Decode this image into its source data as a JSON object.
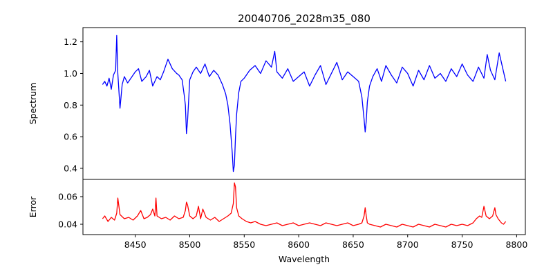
{
  "chart_data": {
    "type": "line",
    "title": "20040706_2028m35_080",
    "xlabel": "Wavelength",
    "grid": false,
    "xlim": [
      8402,
      8808
    ],
    "xticks": [
      8450,
      8500,
      8550,
      8600,
      8650,
      8700,
      8750,
      8800
    ],
    "panels": [
      {
        "name": "spectrum-panel",
        "ylabel": "Spectrum",
        "ylim": [
          0.33,
          1.29
        ],
        "yticks": [
          0.4,
          0.6,
          0.8,
          1.0,
          1.2
        ],
        "series": [
          {
            "color": "#0000ff",
            "x": [
              8420,
              8422,
              8424,
              8426,
              8428,
              8430,
              8432,
              8433,
              8434,
              8436,
              8438,
              8440,
              8443,
              8446,
              8450,
              8453,
              8456,
              8460,
              8463,
              8466,
              8470,
              8473,
              8476,
              8480,
              8484,
              8488,
              8490,
              8493,
              8495,
              8496,
              8497,
              8498,
              8500,
              8503,
              8506,
              8510,
              8514,
              8518,
              8522,
              8526,
              8530,
              8533,
              8535,
              8537,
              8539,
              8540,
              8541,
              8542,
              8543,
              8545,
              8547,
              8550,
              8555,
              8560,
              8565,
              8570,
              8575,
              8578,
              8580,
              8585,
              8590,
              8595,
              8600,
              8605,
              8610,
              8615,
              8620,
              8625,
              8630,
              8635,
              8640,
              8645,
              8650,
              8655,
              8658,
              8660,
              8661,
              8662,
              8663,
              8665,
              8668,
              8672,
              8676,
              8680,
              8685,
              8690,
              8695,
              8700,
              8705,
              8710,
              8715,
              8720,
              8725,
              8730,
              8735,
              8740,
              8745,
              8750,
              8755,
              8760,
              8765,
              8770,
              8773,
              8776,
              8780,
              8784,
              8788,
              8790
            ],
            "y": [
              0.93,
              0.95,
              0.92,
              0.97,
              0.9,
              0.99,
              1.02,
              1.24,
              1.0,
              0.78,
              0.93,
              0.98,
              0.94,
              0.97,
              1.01,
              1.03,
              0.95,
              0.98,
              1.02,
              0.92,
              0.98,
              0.96,
              1.01,
              1.09,
              1.03,
              1.0,
              0.99,
              0.96,
              0.86,
              0.8,
              0.62,
              0.7,
              0.96,
              1.01,
              1.04,
              1.0,
              1.06,
              0.98,
              1.02,
              0.99,
              0.93,
              0.87,
              0.8,
              0.68,
              0.5,
              0.38,
              0.42,
              0.6,
              0.74,
              0.88,
              0.95,
              0.97,
              1.02,
              1.05,
              1.0,
              1.08,
              1.04,
              1.14,
              1.01,
              0.97,
              1.03,
              0.95,
              0.98,
              1.01,
              0.92,
              0.99,
              1.05,
              0.93,
              1.0,
              1.07,
              0.96,
              1.01,
              0.98,
              0.95,
              0.85,
              0.71,
              0.63,
              0.7,
              0.82,
              0.92,
              0.98,
              1.03,
              0.95,
              1.05,
              0.99,
              0.94,
              1.04,
              1.0,
              0.92,
              1.02,
              0.96,
              1.05,
              0.97,
              1.0,
              0.95,
              1.03,
              0.98,
              1.06,
              0.99,
              0.95,
              1.04,
              0.97,
              1.12,
              1.02,
              0.96,
              1.13,
              1.01,
              0.95
            ]
          }
        ]
      },
      {
        "name": "error-panel",
        "ylabel": "Error",
        "ylim": [
          0.0325,
          0.0725
        ],
        "yticks": [
          0.04,
          0.06
        ],
        "series": [
          {
            "color": "#ff0000",
            "x": [
              8420,
              8422,
              8425,
              8428,
              8431,
              8433,
              8434,
              8436,
              8440,
              8444,
              8448,
              8452,
              8455,
              8458,
              8461,
              8464,
              8466,
              8468,
              8469,
              8470,
              8474,
              8478,
              8482,
              8486,
              8490,
              8494,
              8496,
              8497,
              8498,
              8500,
              8503,
              8506,
              8508,
              8510,
              8512,
              8515,
              8519,
              8523,
              8527,
              8531,
              8535,
              8538,
              8540,
              8541,
              8542,
              8543,
              8545,
              8548,
              8552,
              8556,
              8560,
              8565,
              8570,
              8575,
              8580,
              8585,
              8590,
              8595,
              8600,
              8605,
              8610,
              8615,
              8620,
              8625,
              8630,
              8635,
              8640,
              8645,
              8650,
              8655,
              8658,
              8660,
              8661,
              8662,
              8663,
              8665,
              8670,
              8675,
              8680,
              8685,
              8690,
              8695,
              8700,
              8705,
              8710,
              8715,
              8720,
              8725,
              8730,
              8735,
              8740,
              8745,
              8750,
              8755,
              8760,
              8763,
              8766,
              8768,
              8770,
              8772,
              8775,
              8778,
              8780,
              8781,
              8783,
              8786,
              8788,
              8790
            ],
            "y": [
              0.044,
              0.046,
              0.042,
              0.045,
              0.043,
              0.048,
              0.059,
              0.047,
              0.044,
              0.045,
              0.043,
              0.046,
              0.05,
              0.044,
              0.045,
              0.047,
              0.051,
              0.046,
              0.059,
              0.046,
              0.044,
              0.045,
              0.043,
              0.046,
              0.044,
              0.045,
              0.05,
              0.056,
              0.054,
              0.046,
              0.044,
              0.046,
              0.053,
              0.044,
              0.051,
              0.045,
              0.043,
              0.045,
              0.042,
              0.044,
              0.046,
              0.048,
              0.055,
              0.07,
              0.067,
              0.052,
              0.046,
              0.044,
              0.042,
              0.041,
              0.042,
              0.04,
              0.039,
              0.04,
              0.041,
              0.039,
              0.04,
              0.041,
              0.039,
              0.04,
              0.041,
              0.04,
              0.039,
              0.041,
              0.04,
              0.039,
              0.04,
              0.041,
              0.039,
              0.04,
              0.041,
              0.046,
              0.052,
              0.046,
              0.041,
              0.04,
              0.039,
              0.038,
              0.04,
              0.039,
              0.038,
              0.04,
              0.039,
              0.038,
              0.04,
              0.039,
              0.038,
              0.04,
              0.039,
              0.038,
              0.04,
              0.039,
              0.04,
              0.039,
              0.041,
              0.044,
              0.046,
              0.045,
              0.053,
              0.046,
              0.044,
              0.046,
              0.052,
              0.047,
              0.044,
              0.041,
              0.04,
              0.042
            ]
          }
        ]
      }
    ]
  }
}
